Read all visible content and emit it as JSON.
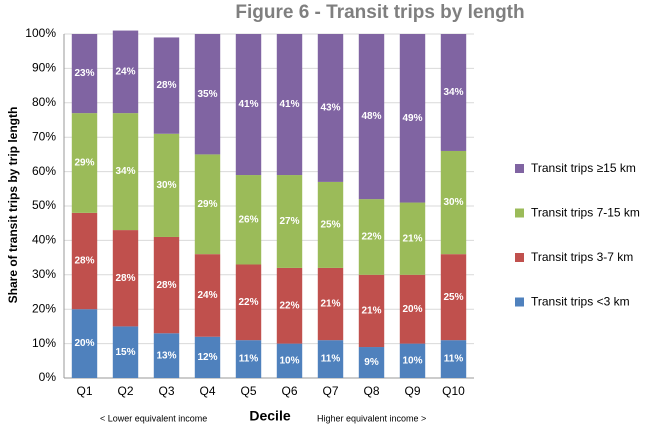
{
  "chart_data": {
    "type": "stacked_bar",
    "title": "Figure 6 - Transit trips by length",
    "x_label": "Decile",
    "y_label": "Share of transit trips by trip length",
    "annotations": [
      "< Lower equivalent income",
      "Higher equivalent income >"
    ],
    "categories": [
      "Q1",
      "Q2",
      "Q3",
      "Q4",
      "Q5",
      "Q6",
      "Q7",
      "Q8",
      "Q9",
      "Q10"
    ],
    "series": [
      {
        "name": "Transit trips <3 km",
        "color": "#4f81bd",
        "values": [
          20,
          15,
          13,
          12,
          11,
          10,
          11,
          9,
          10,
          11
        ],
        "value_labels": [
          "20%",
          "15%",
          "13%",
          "12%",
          "11%",
          "10%",
          "11%",
          "9%",
          "10%",
          "11%"
        ]
      },
      {
        "name": "Transit trips 3-7 km",
        "color": "#c0504d",
        "values": [
          28,
          28,
          28,
          24,
          22,
          22,
          21,
          21,
          20,
          25
        ],
        "value_labels": [
          "28%",
          "28%",
          "28%",
          "24%",
          "22%",
          "22%",
          "21%",
          "21%",
          "20%",
          "25%"
        ]
      },
      {
        "name": "Transit trips 7-15 km",
        "color": "#9bbb59",
        "values": [
          29,
          34,
          30,
          29,
          26,
          27,
          25,
          22,
          21,
          30
        ],
        "value_labels": [
          "29%",
          "34%",
          "30%",
          "29%",
          "26%",
          "27%",
          "25%",
          "22%",
          "21%",
          "30%"
        ]
      },
      {
        "name": "Transit trips ≥15 km",
        "color": "#8064a2",
        "values": [
          23,
          24,
          28,
          35,
          41,
          41,
          43,
          48,
          49,
          34
        ],
        "value_labels": [
          "23%",
          "24%",
          "28%",
          "35%",
          "41%",
          "41%",
          "43%",
          "48%",
          "49%",
          "34%"
        ]
      }
    ],
    "ylim": [
      0,
      100
    ],
    "yticks": [
      {
        "value": 0,
        "label": "0%"
      },
      {
        "value": 10,
        "label": "10%"
      },
      {
        "value": 20,
        "label": "20%"
      },
      {
        "value": 30,
        "label": "30%"
      },
      {
        "value": 40,
        "label": "40%"
      },
      {
        "value": 50,
        "label": "50%"
      },
      {
        "value": 60,
        "label": "60%"
      },
      {
        "value": 70,
        "label": "70%"
      },
      {
        "value": 80,
        "label": "80%"
      },
      {
        "value": 90,
        "label": "90%"
      },
      {
        "value": 100,
        "label": "100%"
      }
    ],
    "grid": true,
    "legend": "right"
  }
}
